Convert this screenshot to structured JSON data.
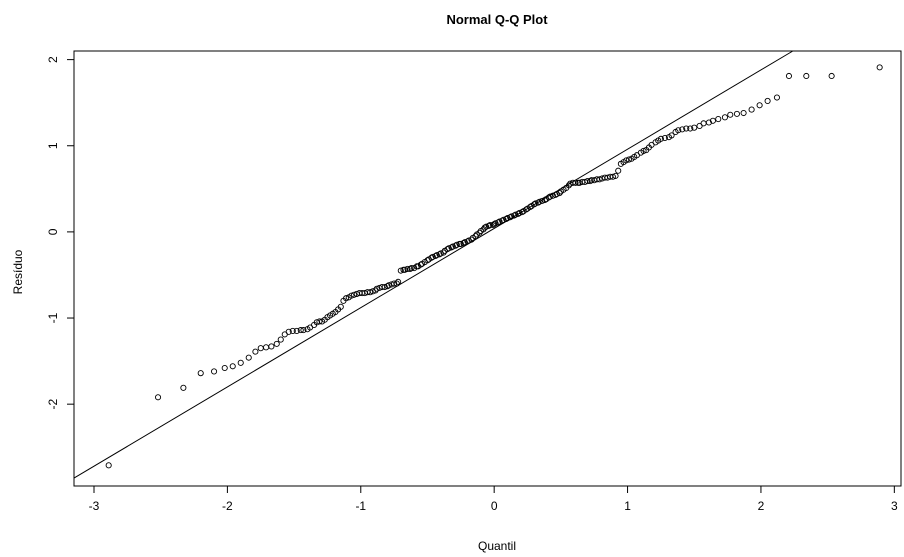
{
  "chart_data": {
    "type": "scatter",
    "title": "Normal Q-Q Plot",
    "xlabel": "Quantil",
    "ylabel": "Resíduo",
    "xlim": [
      -3.15,
      3.05
    ],
    "ylim": [
      -2.95,
      2.1
    ],
    "x_ticks": [
      -3,
      -2,
      -1,
      0,
      1,
      2,
      3
    ],
    "y_ticks": [
      -2,
      -1,
      0,
      1,
      2
    ],
    "x_tick_labels": [
      "-3",
      "-2",
      "-1",
      "0",
      "1",
      "2",
      "3"
    ],
    "y_tick_labels": [
      "-2",
      "-1",
      "0",
      "1",
      "2"
    ],
    "grid": false,
    "reference_line": {
      "slope": 0.92,
      "intercept": 0.04
    },
    "series": [
      {
        "points": [
          [
            -2.89,
            -2.71
          ],
          [
            -2.52,
            -1.92
          ],
          [
            -2.33,
            -1.81
          ],
          [
            -2.2,
            -1.64
          ],
          [
            -2.1,
            -1.62
          ],
          [
            -2.02,
            -1.58
          ],
          [
            -1.96,
            -1.56
          ],
          [
            -1.9,
            -1.52
          ],
          [
            -1.84,
            -1.46
          ],
          [
            -1.79,
            -1.39
          ],
          [
            -1.75,
            -1.35
          ],
          [
            -1.71,
            -1.34
          ],
          [
            -1.67,
            -1.33
          ],
          [
            -1.63,
            -1.3
          ],
          [
            -1.6,
            -1.25
          ],
          [
            -1.57,
            -1.19
          ],
          [
            -1.54,
            -1.16
          ],
          [
            -1.51,
            -1.15
          ],
          [
            -1.48,
            -1.15
          ],
          [
            -1.45,
            -1.14
          ],
          [
            -1.43,
            -1.14
          ],
          [
            -1.4,
            -1.13
          ],
          [
            -1.38,
            -1.11
          ],
          [
            -1.35,
            -1.08
          ],
          [
            -1.33,
            -1.05
          ],
          [
            -1.31,
            -1.04
          ],
          [
            -1.29,
            -1.04
          ],
          [
            -1.27,
            -1.02
          ],
          [
            -1.25,
            -0.99
          ],
          [
            -1.23,
            -0.97
          ],
          [
            -1.21,
            -0.95
          ],
          [
            -1.19,
            -0.93
          ],
          [
            -1.17,
            -0.9
          ],
          [
            -1.15,
            -0.87
          ],
          [
            -1.13,
            -0.8
          ],
          [
            -1.11,
            -0.77
          ],
          [
            -1.09,
            -0.76
          ],
          [
            -1.07,
            -0.74
          ],
          [
            -1.05,
            -0.73
          ],
          [
            -1.03,
            -0.72
          ],
          [
            -1.01,
            -0.71
          ],
          [
            -0.99,
            -0.71
          ],
          [
            -0.97,
            -0.71
          ],
          [
            -0.95,
            -0.7
          ],
          [
            -0.93,
            -0.7
          ],
          [
            -0.91,
            -0.69
          ],
          [
            -0.89,
            -0.68
          ],
          [
            -0.88,
            -0.66
          ],
          [
            -0.86,
            -0.65
          ],
          [
            -0.84,
            -0.64
          ],
          [
            -0.82,
            -0.64
          ],
          [
            -0.8,
            -0.63
          ],
          [
            -0.79,
            -0.62
          ],
          [
            -0.77,
            -0.61
          ],
          [
            -0.75,
            -0.6
          ],
          [
            -0.73,
            -0.6
          ],
          [
            -0.72,
            -0.58
          ],
          [
            -0.7,
            -0.45
          ],
          [
            -0.68,
            -0.44
          ],
          [
            -0.67,
            -0.44
          ],
          [
            -0.65,
            -0.43
          ],
          [
            -0.63,
            -0.43
          ],
          [
            -0.62,
            -0.42
          ],
          [
            -0.6,
            -0.42
          ],
          [
            -0.58,
            -0.4
          ],
          [
            -0.57,
            -0.4
          ],
          [
            -0.55,
            -0.38
          ],
          [
            -0.54,
            -0.37
          ],
          [
            -0.52,
            -0.35
          ],
          [
            -0.5,
            -0.33
          ],
          [
            -0.49,
            -0.32
          ],
          [
            -0.47,
            -0.3
          ],
          [
            -0.46,
            -0.29
          ],
          [
            -0.44,
            -0.28
          ],
          [
            -0.43,
            -0.27
          ],
          [
            -0.41,
            -0.26
          ],
          [
            -0.4,
            -0.25
          ],
          [
            -0.38,
            -0.24
          ],
          [
            -0.37,
            -0.22
          ],
          [
            -0.35,
            -0.2
          ],
          [
            -0.34,
            -0.19
          ],
          [
            -0.32,
            -0.18
          ],
          [
            -0.31,
            -0.17
          ],
          [
            -0.29,
            -0.16
          ],
          [
            -0.28,
            -0.15
          ],
          [
            -0.26,
            -0.14
          ],
          [
            -0.25,
            -0.14
          ],
          [
            -0.23,
            -0.13
          ],
          [
            -0.22,
            -0.12
          ],
          [
            -0.2,
            -0.11
          ],
          [
            -0.19,
            -0.1
          ],
          [
            -0.17,
            -0.09
          ],
          [
            -0.16,
            -0.07
          ],
          [
            -0.14,
            -0.05
          ],
          [
            -0.13,
            -0.03
          ],
          [
            -0.11,
            -0.01
          ],
          [
            -0.1,
            0.01
          ],
          [
            -0.08,
            0.03
          ],
          [
            -0.07,
            0.05
          ],
          [
            -0.06,
            0.06
          ],
          [
            -0.04,
            0.07
          ],
          [
            -0.03,
            0.08
          ],
          [
            -0.01,
            0.08
          ],
          [
            0.0,
            0.09
          ],
          [
            0.01,
            0.1
          ],
          [
            0.03,
            0.11
          ],
          [
            0.04,
            0.12
          ],
          [
            0.06,
            0.13
          ],
          [
            0.07,
            0.14
          ],
          [
            0.09,
            0.15
          ],
          [
            0.1,
            0.16
          ],
          [
            0.12,
            0.17
          ],
          [
            0.13,
            0.18
          ],
          [
            0.15,
            0.19
          ],
          [
            0.16,
            0.2
          ],
          [
            0.18,
            0.21
          ],
          [
            0.19,
            0.22
          ],
          [
            0.21,
            0.23
          ],
          [
            0.22,
            0.24
          ],
          [
            0.24,
            0.26
          ],
          [
            0.25,
            0.27
          ],
          [
            0.27,
            0.29
          ],
          [
            0.28,
            0.3
          ],
          [
            0.3,
            0.32
          ],
          [
            0.31,
            0.33
          ],
          [
            0.33,
            0.34
          ],
          [
            0.34,
            0.35
          ],
          [
            0.36,
            0.36
          ],
          [
            0.38,
            0.37
          ],
          [
            0.39,
            0.38
          ],
          [
            0.41,
            0.4
          ],
          [
            0.42,
            0.41
          ],
          [
            0.44,
            0.42
          ],
          [
            0.46,
            0.43
          ],
          [
            0.47,
            0.44
          ],
          [
            0.49,
            0.45
          ],
          [
            0.5,
            0.47
          ],
          [
            0.52,
            0.49
          ],
          [
            0.54,
            0.51
          ],
          [
            0.56,
            0.54
          ],
          [
            0.57,
            0.56
          ],
          [
            0.59,
            0.57
          ],
          [
            0.61,
            0.57
          ],
          [
            0.63,
            0.57
          ],
          [
            0.64,
            0.57
          ],
          [
            0.66,
            0.58
          ],
          [
            0.68,
            0.58
          ],
          [
            0.7,
            0.59
          ],
          [
            0.72,
            0.59
          ],
          [
            0.73,
            0.6
          ],
          [
            0.75,
            0.6
          ],
          [
            0.77,
            0.61
          ],
          [
            0.79,
            0.61
          ],
          [
            0.81,
            0.62
          ],
          [
            0.83,
            0.63
          ],
          [
            0.85,
            0.63
          ],
          [
            0.87,
            0.64
          ],
          [
            0.89,
            0.64
          ],
          [
            0.91,
            0.65
          ],
          [
            0.93,
            0.71
          ],
          [
            0.95,
            0.79
          ],
          [
            0.97,
            0.81
          ],
          [
            0.99,
            0.83
          ],
          [
            1.01,
            0.84
          ],
          [
            1.03,
            0.85
          ],
          [
            1.05,
            0.87
          ],
          [
            1.07,
            0.89
          ],
          [
            1.1,
            0.92
          ],
          [
            1.12,
            0.94
          ],
          [
            1.14,
            0.95
          ],
          [
            1.16,
            0.98
          ],
          [
            1.18,
            1.01
          ],
          [
            1.21,
            1.04
          ],
          [
            1.23,
            1.06
          ],
          [
            1.25,
            1.08
          ],
          [
            1.28,
            1.09
          ],
          [
            1.31,
            1.1
          ],
          [
            1.33,
            1.12
          ],
          [
            1.36,
            1.16
          ],
          [
            1.38,
            1.18
          ],
          [
            1.41,
            1.19
          ],
          [
            1.44,
            1.2
          ],
          [
            1.47,
            1.2
          ],
          [
            1.5,
            1.21
          ],
          [
            1.54,
            1.23
          ],
          [
            1.57,
            1.26
          ],
          [
            1.61,
            1.27
          ],
          [
            1.64,
            1.29
          ],
          [
            1.68,
            1.31
          ],
          [
            1.73,
            1.33
          ],
          [
            1.77,
            1.36
          ],
          [
            1.82,
            1.37
          ],
          [
            1.87,
            1.38
          ],
          [
            1.93,
            1.42
          ],
          [
            1.99,
            1.47
          ],
          [
            2.05,
            1.52
          ],
          [
            2.12,
            1.56
          ],
          [
            2.21,
            1.81
          ],
          [
            2.34,
            1.81
          ],
          [
            2.53,
            1.81
          ],
          [
            2.89,
            1.91
          ]
        ]
      }
    ]
  }
}
